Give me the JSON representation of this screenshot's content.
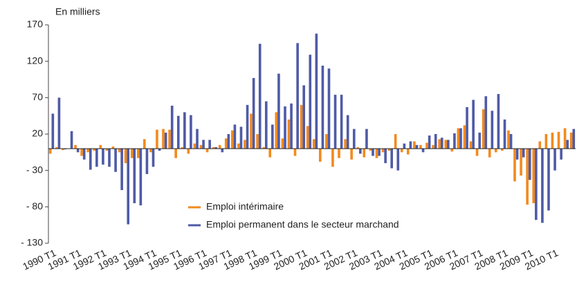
{
  "chart_data": {
    "type": "bar",
    "y_label": "En milliers",
    "categories": [
      "1990 T1",
      null,
      null,
      null,
      "1991 T1",
      null,
      null,
      null,
      "1992 T1",
      null,
      null,
      null,
      "1993 T1",
      null,
      null,
      null,
      "1994 T1",
      null,
      null,
      null,
      "1995 T1",
      null,
      null,
      null,
      "1996 T1",
      null,
      null,
      null,
      "1997 T1",
      null,
      null,
      null,
      "1998 T1",
      null,
      null,
      null,
      "1999 T1",
      null,
      null,
      null,
      "2000 T1",
      null,
      null,
      null,
      "2001 T1",
      null,
      null,
      null,
      "2002 T1",
      null,
      null,
      null,
      "2003 T1",
      null,
      null,
      null,
      "2004 T1",
      null,
      null,
      null,
      "2005 T1",
      null,
      null,
      null,
      "2006 T1",
      null,
      null,
      null,
      "2007 T1",
      null,
      null,
      null,
      "2008 T1",
      null,
      null,
      null,
      "2009 T1",
      null,
      null,
      null,
      "2010 T1",
      null,
      null,
      null
    ],
    "series": [
      {
        "name": "Emploi intérimaire",
        "color": "#f28a1e",
        "values": [
          -7,
          2,
          -2,
          0,
          5,
          -10,
          -5,
          -3,
          5,
          -3,
          3,
          -5,
          -20,
          -13,
          -13,
          13,
          -5,
          26,
          27,
          26,
          -13,
          2,
          -7,
          7,
          5,
          -5,
          2,
          5,
          14,
          25,
          7,
          12,
          48,
          20,
          2,
          -12,
          50,
          14,
          40,
          -10,
          60,
          31,
          13,
          -18,
          20,
          -25,
          -13,
          13,
          -15,
          2,
          -12,
          -3,
          -13,
          -5,
          -3,
          20,
          -5,
          -8,
          10,
          5,
          8,
          5,
          13,
          12,
          -4,
          28,
          32,
          10,
          -10,
          54,
          -12,
          -5,
          -3,
          25,
          -45,
          -37,
          -77,
          -75,
          10,
          20,
          22,
          23,
          28,
          22
        ]
      },
      {
        "name": "Emploi permanent dans le secteur marchand",
        "color": "#4f5ba6",
        "values": [
          48,
          70,
          -1,
          24,
          -5,
          -15,
          -29,
          -25,
          -22,
          -25,
          -32,
          -57,
          -104,
          -75,
          -78,
          -35,
          -25,
          -3,
          22,
          59,
          45,
          50,
          46,
          27,
          12,
          12,
          2,
          -5,
          20,
          33,
          30,
          60,
          97,
          144,
          65,
          33,
          103,
          58,
          62,
          145,
          87,
          129,
          158,
          114,
          110,
          74,
          74,
          46,
          27,
          -7,
          27,
          -10,
          -10,
          -20,
          -27,
          -30,
          7,
          10,
          5,
          -5,
          18,
          20,
          15,
          12,
          21,
          28,
          57,
          67,
          22,
          72,
          52,
          75,
          40,
          20,
          -15,
          -12,
          -43,
          -98,
          -102,
          -85,
          -30,
          -15,
          12,
          27
        ]
      }
    ],
    "ylim": [
      -130,
      170
    ],
    "yticks": [
      170,
      120,
      70,
      20,
      {
        "value": -30,
        "label": "- 30"
      },
      {
        "value": -80,
        "label": "- 80"
      },
      {
        "value": -130,
        "label": "- 130"
      }
    ]
  }
}
